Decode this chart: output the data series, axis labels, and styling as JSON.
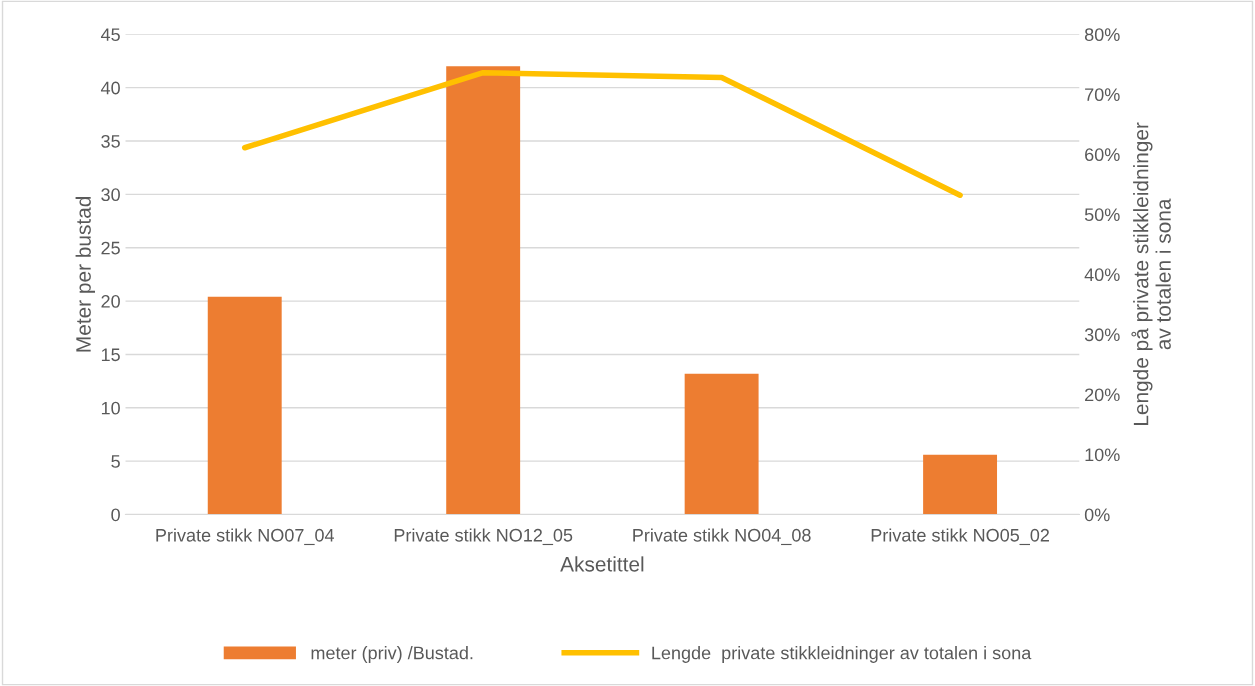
{
  "chart_data": {
    "type": "bar",
    "xlabel": "Aksetittel",
    "ylabel": "Meter per bustad",
    "y2label": "Lengde på private stikkleidninger\nav totalen i sona",
    "categories": [
      "Private stikk NO07_04",
      "Private stikk NO12_05",
      "Private stikk NO04_08",
      "Private stikk NO05_02"
    ],
    "series": [
      {
        "name": "meter (priv) /Bustad.",
        "color": "#ed7d31",
        "values": [
          20.4,
          42.0,
          13.2,
          5.6
        ]
      },
      {
        "name": "Lengde  private stikkleidninger av totalen i sona",
        "type": "line",
        "axis": "y2",
        "color": "#ffc000",
        "values": [
          61.1,
          73.6,
          72.8,
          53.2
        ]
      }
    ],
    "ylim": [
      0,
      45
    ],
    "yticks": [
      0,
      5,
      10,
      15,
      20,
      25,
      30,
      35,
      40,
      45
    ],
    "y2lim": [
      0,
      80
    ],
    "y2ticks": [
      {
        "value": 0,
        "label": "0%"
      },
      {
        "value": 10,
        "label": "10%"
      },
      {
        "value": 20,
        "label": "20%"
      },
      {
        "value": 30,
        "label": "30%"
      },
      {
        "value": 40,
        "label": "40%"
      },
      {
        "value": 50,
        "label": "50%"
      },
      {
        "value": 60,
        "label": "60%"
      },
      {
        "value": 70,
        "label": "70%"
      },
      {
        "value": 80,
        "label": "80%"
      }
    ],
    "grid": "y",
    "legend": "bottom"
  }
}
